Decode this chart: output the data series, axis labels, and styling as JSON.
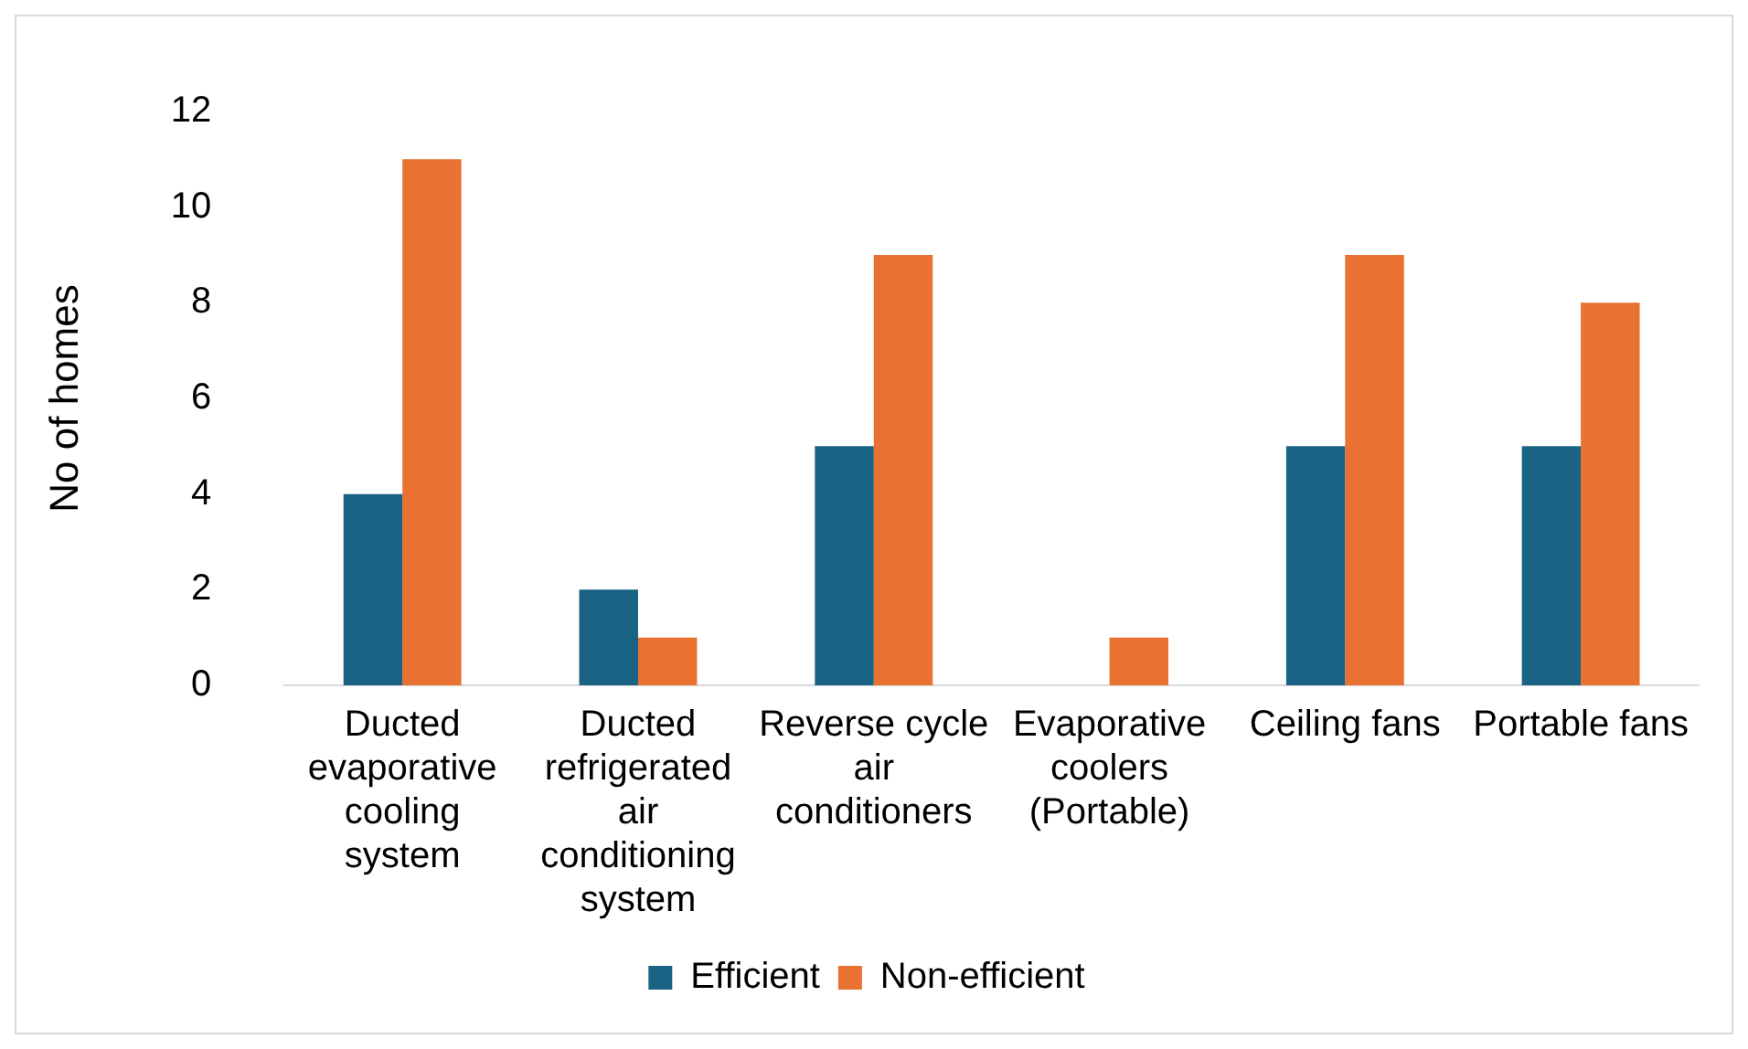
{
  "chart_data": {
    "type": "bar",
    "ylabel": "No of homes",
    "categories": [
      "Ducted evaporative cooling system",
      "Ducted refrigerated air conditioning system",
      "Reverse cycle air conditioners",
      "Evaporative coolers (Portable)",
      "Ceiling fans",
      "Portable fans"
    ],
    "series": [
      {
        "name": "Efficient",
        "color": "#1a6384",
        "values": [
          4,
          2,
          5,
          0,
          5,
          5
        ]
      },
      {
        "name": "Non-efficient",
        "color": "#e97132",
        "values": [
          11,
          1,
          9,
          1,
          9,
          8
        ]
      }
    ],
    "ylim": [
      0,
      12
    ],
    "yticks": [
      0,
      2,
      4,
      6,
      8,
      10,
      12
    ],
    "grid": false,
    "legend": "bottom"
  }
}
